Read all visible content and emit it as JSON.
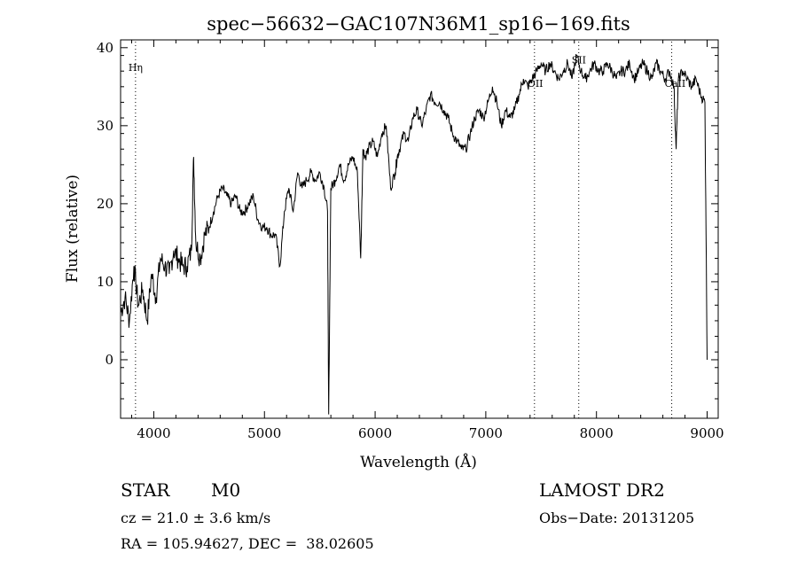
{
  "chart_data": {
    "type": "line",
    "title": "spec−56632−GAC107N36M1_sp16−169.fits",
    "xlabel": "Wavelength (Å)",
    "ylabel": "Flux (relative)",
    "xlim": [
      3700,
      9100
    ],
    "ylim": [
      -7.5,
      41
    ],
    "xticks": [
      4000,
      5000,
      6000,
      7000,
      8000,
      9000
    ],
    "yticks": [
      0,
      10,
      20,
      30,
      40
    ],
    "grid": false,
    "lines": [
      {
        "label": "Hη",
        "x": 3835,
        "label_y": 37
      },
      {
        "label": "OII",
        "x": 7440,
        "label_y": 35
      },
      {
        "label": "SII",
        "x": 7840,
        "label_y": 38
      },
      {
        "label": "CaII",
        "x": 8680,
        "label_y": 35
      }
    ],
    "series": [
      {
        "x": [
          3700,
          3740,
          3780,
          3820,
          3860,
          3900,
          3940,
          3980,
          4020,
          4060,
          4100,
          4140,
          4180,
          4220,
          4260,
          4300,
          4340,
          4360,
          4380,
          4420,
          4460,
          4500,
          4540,
          4580,
          4620,
          4660,
          4700,
          4740,
          4780,
          4820,
          4860,
          4900,
          4940,
          4980,
          5020,
          5060,
          5100,
          5140,
          5180,
          5220,
          5260,
          5300,
          5340,
          5380,
          5420,
          5460,
          5500,
          5540,
          5570,
          5580,
          5600,
          5640,
          5680,
          5720,
          5760,
          5800,
          5840,
          5870,
          5890,
          5910,
          5940,
          5980,
          6020,
          6060,
          6100,
          6140,
          6180,
          6200,
          6220,
          6260,
          6300,
          6340,
          6380,
          6420,
          6460,
          6500,
          6540,
          6580,
          6620,
          6660,
          6700,
          6740,
          6780,
          6820,
          6860,
          6900,
          6940,
          6980,
          7020,
          7060,
          7100,
          7140,
          7180,
          7220,
          7260,
          7300,
          7340,
          7380,
          7420,
          7460,
          7500,
          7540,
          7580,
          7620,
          7660,
          7700,
          7740,
          7780,
          7820,
          7860,
          7900,
          7940,
          7980,
          8020,
          8060,
          8100,
          8140,
          8180,
          8220,
          8260,
          8300,
          8340,
          8380,
          8420,
          8460,
          8500,
          8540,
          8580,
          8620,
          8660,
          8700,
          8720,
          8740,
          8780,
          8820,
          8860,
          8900,
          8940,
          8980,
          9000
        ],
        "values": [
          6,
          8,
          5,
          12,
          7,
          9,
          5,
          11,
          8,
          13,
          12,
          11,
          14,
          13,
          12,
          12,
          14,
          26,
          15,
          13,
          16,
          17,
          19,
          21,
          22,
          21,
          20,
          21,
          19,
          19,
          20,
          21,
          18,
          17,
          17,
          16,
          16,
          12,
          19,
          22,
          19,
          24,
          22,
          23,
          24,
          23,
          24,
          22,
          19,
          -7,
          22,
          23,
          25,
          23,
          25,
          26,
          24,
          13,
          27,
          26,
          27,
          28,
          26,
          29,
          30,
          22,
          24,
          26,
          27,
          29,
          28,
          31,
          32,
          30,
          32,
          34,
          33,
          33,
          32,
          31,
          29,
          28,
          27,
          27,
          29,
          31,
          32,
          31,
          33,
          35,
          33,
          30,
          32,
          31,
          32,
          34,
          36,
          35,
          36,
          37,
          38,
          37,
          38,
          37,
          36,
          37,
          38,
          36,
          39,
          37,
          36,
          37,
          38,
          37,
          37,
          38,
          37,
          36,
          37,
          37,
          38,
          36,
          37,
          38,
          37,
          36,
          38,
          37,
          36,
          37,
          35,
          27,
          36,
          37,
          36,
          35,
          36,
          34,
          33,
          0
        ]
      }
    ]
  },
  "info": {
    "class_label": "STAR",
    "subclass_label": "M0",
    "survey": "LAMOST DR2",
    "cz": "cz = 21.0 ± 3.6 km/s",
    "obs_date": "Obs−Date: 20131205",
    "radec": "RA = 105.94627, DEC =  38.02605"
  }
}
